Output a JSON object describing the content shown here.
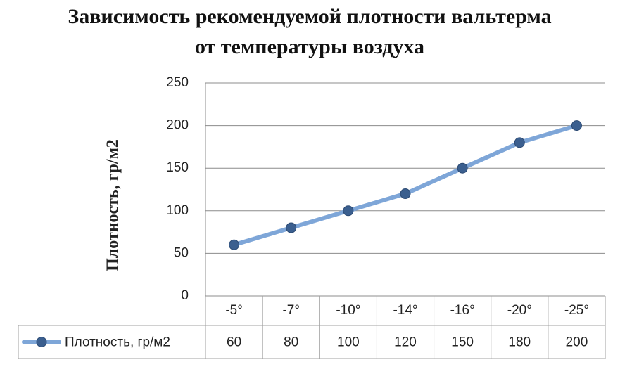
{
  "chart_data": {
    "type": "line",
    "title": "Зависимость рекомендуемой плотности вальтерма от температуры воздуха",
    "y_label": "Плотность, гр/м2",
    "categories": [
      "-5°",
      "-7°",
      "-10°",
      "-14°",
      "-16°",
      "-20°",
      "-25°"
    ],
    "series": [
      {
        "name": "Плотность, гр/м2",
        "color": "#7ea6d8",
        "marker_color": "#3b5f8f",
        "values": [
          60,
          80,
          100,
          120,
          150,
          180,
          200
        ]
      }
    ],
    "ylim": [
      0,
      250
    ],
    "yticks": [
      0,
      50,
      100,
      150,
      200,
      250
    ],
    "grid": true,
    "data_table": true
  }
}
